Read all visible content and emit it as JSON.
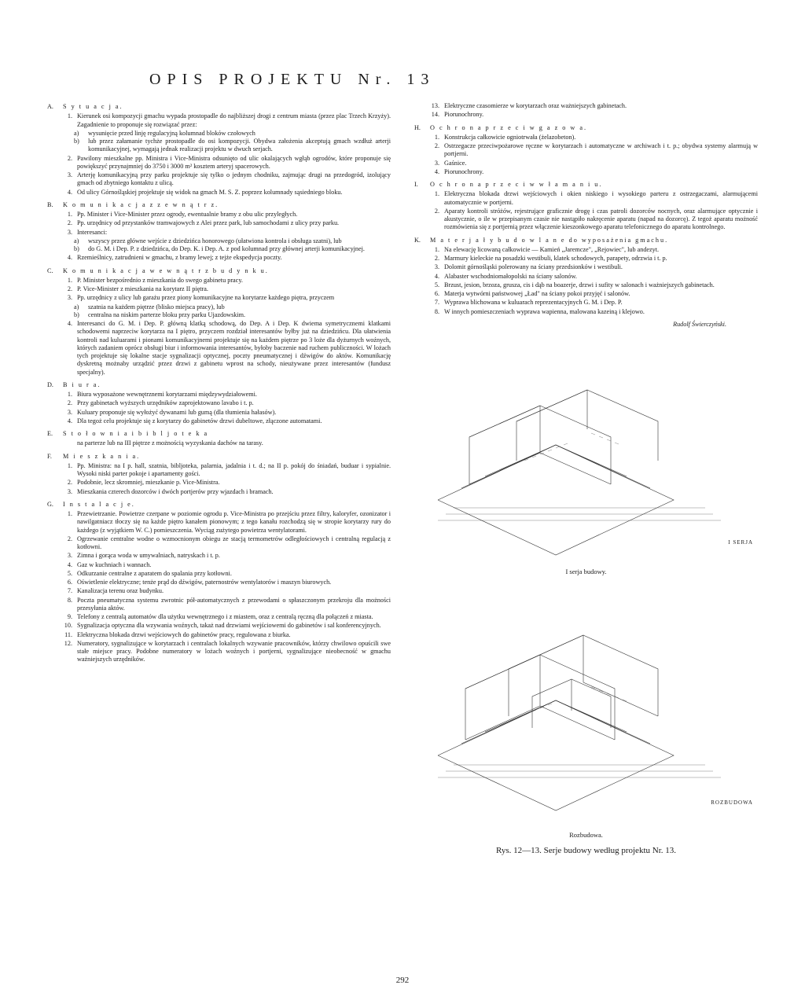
{
  "title": "OPIS PROJEKTU Nr. 13",
  "pageNumber": "292",
  "author": "Rudolf Świerczyński.",
  "sections": [
    {
      "col": "L",
      "letter": "A.",
      "heading": "S y t u a c j a.",
      "items": [
        {
          "n": "1.",
          "t": "Kierunek osi kompozycji gmachu wypada prostopadle do najbliższej drogi z centrum miasta (przez plac Trzech Krzyży). Zagadnienie to proponuje się rozwiązać przez:",
          "subs": [
            {
              "k": "a)",
              "t": "wysunięcie przed linję regulacyjną kolumnad bloków czołowych"
            },
            {
              "k": "b)",
              "t": "lub przez załamanie tychże prostopadle do osi kompozycji. Obydwa założenia akceptują gmach wzdłuż arterji komunikacyjnej, wymagają jednak realizacji projektu w dwuch serjach."
            }
          ]
        },
        {
          "n": "2.",
          "t": "Pawilony mieszkalne pp. Ministra i Vice-Ministra odsunięto od ulic okalających wgłąb ogrodów, które proponuje się powiększyć przynajmniej do 3750 i 3000 m² kosztem arteryj spacerowych."
        },
        {
          "n": "3.",
          "t": "Arterję komunikacyjną przy parku projektuje się tylko o jednym chodniku, zajmując drugi na przedogród, izolujący gmach od zbytniego kontaktu z ulicą."
        },
        {
          "n": "4.",
          "t": "Od ulicy Górnośląskiej projektuje się widok na gmach M. S. Z. poprzez kolumnady sąsiedniego bloku."
        }
      ]
    },
    {
      "col": "L",
      "letter": "B.",
      "heading": "K o m u n i k a c j a   z   z e w n ą t r z.",
      "items": [
        {
          "n": "1.",
          "t": "Pp. Minister i Vice-Minister przez ogrody, ewentualnie bramy z obu ulic przyległych."
        },
        {
          "n": "2.",
          "t": "Pp. urzędnicy od przystanków tramwajowych z Alei przez park, lub samochodami z ulicy przy parku."
        },
        {
          "n": "3.",
          "t": "Interesanci:",
          "subs": [
            {
              "k": "a)",
              "t": "wszyscy przez główne wejście z dziedzińca honorowego (ułatwiona kontrola i obsługa szatni), lub"
            },
            {
              "k": "b)",
              "t": "do G. M. i Dep. P. z dziedzińca, do Dep. K. i Dep. A. z pod kolumnad przy głównej arterji komunikacyjnej."
            }
          ]
        },
        {
          "n": "4.",
          "t": "Rzemieślnicy, zatrudnieni w gmachu, z bramy lewej; z tejże ekspedycja poczty."
        }
      ]
    },
    {
      "col": "L",
      "letter": "C.",
      "heading": "K o m u n i k a c j a   w e w n ą t r z   b u d y n k u.",
      "items": [
        {
          "n": "1.",
          "t": "P. Minister bezpośrednio z mieszkania do swego gabinetu pracy."
        },
        {
          "n": "2.",
          "t": "P. Vice-Minister z mieszkania na korytarz II piętra."
        },
        {
          "n": "3.",
          "t": "Pp. urzędnicy z ulicy lub garażu przez piony komunikacyjne na korytarze każdego piętra, przyczem",
          "subs": [
            {
              "k": "a)",
              "t": "szatnia na każdem piętrze (blisko miejsca pracy), lub"
            },
            {
              "k": "b)",
              "t": "centralna na niskim parterze bloku przy parku Ujazdowskim."
            }
          ]
        },
        {
          "n": "4.",
          "t": "Interesanci do G. M. i Dep. P. główną klatką schodową, do Dep. A i Dep. K dwiema symetrycznemi klatkami schodowemi naprzeciw korytarza na I piętro, przyczem rozdział interesantów byłby już na dziedzińcu. Dla ułatwienia kontroli nad kuluarami i pionami komunikacyjnemi projektuje się na każdem piętrze po 3 loże dla dyżurnych woźnych, których zadaniem oprócz obsługi biur i informowania interesantów, byłoby baczenie nad ruchem publiczności. W lożach tych projektuje się lokalne stacje sygnalizacji optycznej, poczty pneumatycznej i dźwigów do aktów. Komunikację dyskretną możnaby urządzić przez drzwi z gabinetu wprost na schody, nieużywane przez interesantów (fundusz specjalny)."
        }
      ]
    },
    {
      "col": "L",
      "letter": "D.",
      "heading": "B i u r a.",
      "items": [
        {
          "n": "1.",
          "t": "Biura wyposażone wewnętrznemi korytarzami międzywydziałowemi."
        },
        {
          "n": "2.",
          "t": "Przy gabinetach wyższych urzędników zaprojektowano lavabo i t. p."
        },
        {
          "n": "3.",
          "t": "Kuluary proponuje się wyłożyć dywanami lub gumą (dla tłumienia hałasów)."
        },
        {
          "n": "4.",
          "t": "Dla tegoż celu projektuje się z korytarzy do gabinetów drzwi dubeltowe, złączone automatami."
        }
      ]
    },
    {
      "col": "L",
      "letter": "E.",
      "heading": "S t o ł o w n i a   i   b i b l j o t e k a",
      "items": [
        {
          "n": "",
          "t": "na parterze lub na III piętrze z możnością wyzyskania dachów na tarasy."
        }
      ]
    },
    {
      "col": "L",
      "letter": "F.",
      "heading": "M i e s z k a n i a.",
      "items": [
        {
          "n": "1.",
          "t": "Pp. Ministra: na I p. hall, szatnia, bibljoteka, palarnia, jadalnia i t. d.; na II p. pokój do śniadań, buduar i sypialnie. Wysoki niski parter pokoje i apartamenty gości."
        },
        {
          "n": "2.",
          "t": "Podobnie, lecz skromniej, mieszkanie p. Vice-Ministra."
        },
        {
          "n": "3.",
          "t": "Mieszkania czterech dozorców i dwóch portjerów przy wjazdach i bramach."
        }
      ]
    },
    {
      "col": "L",
      "letter": "G.",
      "heading": "I n s t a l a c j e.",
      "items": [
        {
          "n": "1.",
          "t": "Przewietrzanie. Powietrze czerpane w poziomie ogrodu p. Vice-Ministra po przejściu przez filtry, kaloryfer, ozonizator i nawilgatniacz tłoczy się na każde piętro kanałem pionowym; z tego kanału rozchodzą się w stropie korytarzy rury do każdego (z wyjątkiem W. C.) pomieszczenia. Wyciąg zużytego powietrza wentylatorami."
        },
        {
          "n": "2.",
          "t": "Ogrzewanie centralne wodne o wzmocnionym obiegu ze stacją termometrów odległościowych i centralną regulacją z kotłowni."
        },
        {
          "n": "3.",
          "t": "Zimna i gorąca woda w umywalniach, natryskach i t. p."
        },
        {
          "n": "4.",
          "t": "Gaz w kuchniach i wannach."
        },
        {
          "n": "5.",
          "t": "Odkurzanie centralne z aparatem do spalania przy kotłowni."
        },
        {
          "n": "6.",
          "t": "Oświetlenie elektryczne; tenże prąd do dźwigów, paternostrów wentylatorów i maszyn biurowych."
        },
        {
          "n": "7.",
          "t": "Kanalizacja terenu oraz budynku."
        },
        {
          "n": "8.",
          "t": "Poczta pneumatyczna systemu zwrotnic pół-automatycznych z przewodami o spłaszczonym przekroju dla możności przesyłania aktów."
        },
        {
          "n": "9.",
          "t": "Telefony z centralą automatów dla użytku wewnętrznego i z miastem, oraz z centralą ręczną dla połączeń z miasta."
        },
        {
          "n": "10.",
          "t": "Sygnalizacja optyczna dla wzywania woźnych, takaż nad drzwiami wejściowemi do gabinetów i sal konferencyjnych."
        },
        {
          "n": "11.",
          "t": "Elektryczna blokada drzwi wejściowych do gabinetów pracy, regulowana z biurka."
        },
        {
          "n": "12.",
          "t": "Numeratory, sygnalizujące w korytarzach i centralach lokalnych wzywanie pracowników, którzy chwilowo opuścili swe stałe miejsce pracy. Podobne numeratory w lożach woźnych i portjerni, sygnalizujące nieobecność w gmachu ważniejszych urzędników."
        }
      ]
    },
    {
      "col": "R",
      "letter": "",
      "heading": "",
      "items": [
        {
          "n": "13.",
          "t": "Elektryczne czasomierze w korytarzach oraz ważniejszych gabinetach."
        },
        {
          "n": "14.",
          "t": "Piorunochrony."
        }
      ]
    },
    {
      "col": "R",
      "letter": "H.",
      "heading": "O c h r o n a   p r z e c i w g a z o w a.",
      "items": [
        {
          "n": "1.",
          "t": "Konstrukcja całkowicie ogniotrwała (żelazobeton)."
        },
        {
          "n": "2.",
          "t": "Ostrzegacze przeciwpożarowe ręczne w korytarzach i automatyczne w archiwach i t. p.; obydwa systemy alarmują w portjerni."
        },
        {
          "n": "3.",
          "t": "Gaśnice."
        },
        {
          "n": "4.",
          "t": "Piorunochrony."
        }
      ]
    },
    {
      "col": "R",
      "letter": "I.",
      "heading": "O c h r o n a   p r z e c i w   w ł a m a n i u.",
      "items": [
        {
          "n": "1.",
          "t": "Elektryczna blokada drzwi wejściowych i okien niskiego i wysokiego parteru z ostrzegaczami, alarmującemi automatycznie w portjerni."
        },
        {
          "n": "2.",
          "t": "Aparaty kontroli stróżów, rejestrujące graficznie drogę i czas patroli dozorców nocnych, oraz alarmujące optycznie i akustycznie, o ile w przepisanym czasie nie nastąpiło nakręcenie aparatu (napad na dozorcę). Z tegoż aparatu możność rozmówienia się z portjernią przez włączenie kieszonkowego aparatu telefonicznego do aparatu kontrolnego."
        }
      ]
    },
    {
      "col": "R",
      "letter": "K.",
      "heading": "M a t e r j a ł y   b u d o w l a n e   do wyposażenia gmachu.",
      "items": [
        {
          "n": "1.",
          "t": "Na elewację licowaną całkowicie — Kamień „Jaremcze\", „Rejowiec\", lub andezyt."
        },
        {
          "n": "2.",
          "t": "Marmury kieleckie na posadzki westibuli, klatek schodowych, parapety, odrzwia i t. p."
        },
        {
          "n": "3.",
          "t": "Dolomit górnośląski polerowany na ściany przedsionków i westibuli."
        },
        {
          "n": "4.",
          "t": "Alabaster wschodniomałopolski na ściany salonów."
        },
        {
          "n": "5.",
          "t": "Brzust, jesion, brzoza, grusza, cis i dąb na boazerje, drzwi i sufity w salonach i ważniejszych gabinetach."
        },
        {
          "n": "6.",
          "t": "Materja wytwórni państwowej „Ład\" na ściany pokoi przyjęć i salonów."
        },
        {
          "n": "7.",
          "t": "Wyprawa blichowana w kuluarach reprezentacyjnych G. M. i Dep. P."
        },
        {
          "n": "8.",
          "t": "W innych pomieszczeniach wyprawa wapienna, malowana kazeiną i klejowo."
        }
      ]
    }
  ],
  "figTop": {
    "sideLabel": "I  SERJA",
    "caption": "I serja budowy."
  },
  "figBottom": {
    "sideLabel": "ROZBUDOWA",
    "caption": "Rozbudowa."
  },
  "figMainCaption": "Rys. 12—13.   Serje budowy według projektu Nr. 13."
}
